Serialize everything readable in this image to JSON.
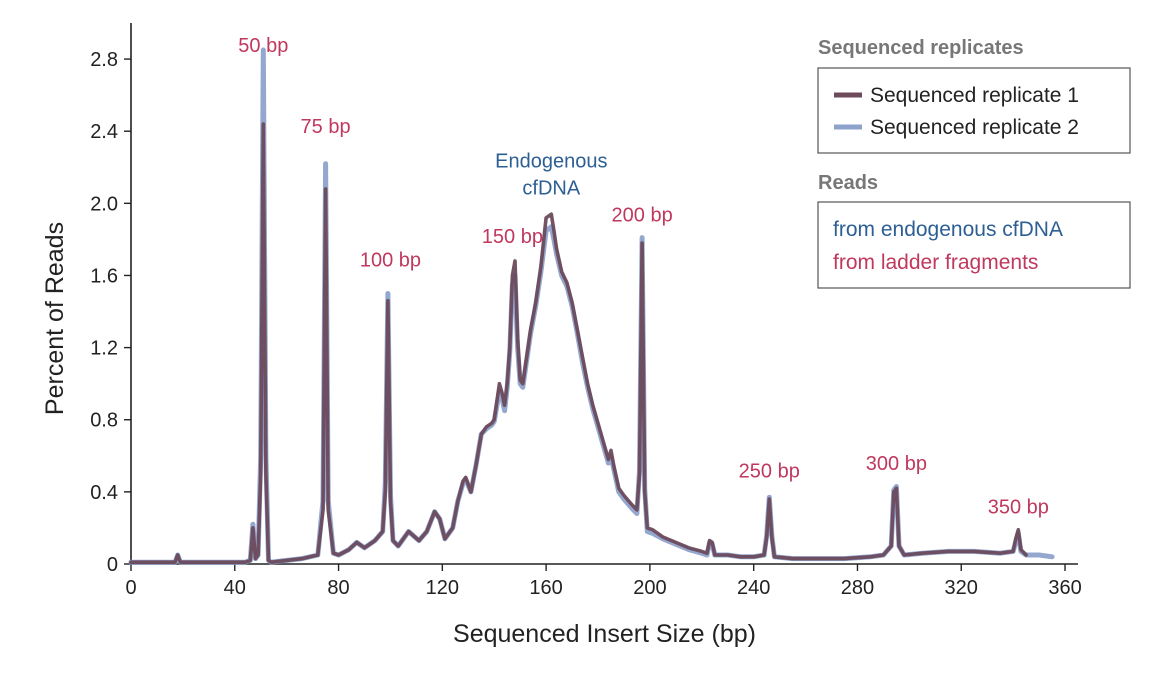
{
  "chart_data": {
    "type": "line",
    "xlabel": "Sequenced Insert Size (bp)",
    "ylabel": "Percent of Reads",
    "xlim": [
      0,
      365
    ],
    "ylim": [
      0,
      3.0
    ],
    "xticks": [
      0,
      40,
      80,
      120,
      160,
      200,
      240,
      280,
      320,
      360
    ],
    "yticks": [
      0,
      0.4,
      0.8,
      1.2,
      1.6,
      2.0,
      2.4,
      2.8
    ],
    "xtick_labels": [
      "0",
      "40",
      "80",
      "120",
      "160",
      "200",
      "240",
      "280",
      "320",
      "360"
    ],
    "ytick_labels": [
      "0",
      "0.4",
      "0.8",
      "1.2",
      "1.6",
      "2.0",
      "2.4",
      "2.8"
    ],
    "grid": false,
    "legend": {
      "placement": "top-right",
      "replicates_title": "Sequenced replicates",
      "reads_title": "Reads",
      "reads_entries": [
        {
          "label": "from endogenous cfDNA",
          "color": "#2d5f95"
        },
        {
          "label": "from ladder fragments",
          "color": "#c0385e"
        }
      ]
    },
    "series": [
      {
        "name": "Sequenced replicate 1",
        "color": "#6b4a5c",
        "points": [
          [
            0,
            0.01
          ],
          [
            10,
            0.01
          ],
          [
            17,
            0.01
          ],
          [
            18,
            0.05
          ],
          [
            19,
            0.01
          ],
          [
            30,
            0.01
          ],
          [
            44,
            0.01
          ],
          [
            46,
            0.02
          ],
          [
            47,
            0.2
          ],
          [
            48,
            0.03
          ],
          [
            49,
            0.05
          ],
          [
            50,
            0.5
          ],
          [
            51,
            2.44
          ],
          [
            52,
            0.5
          ],
          [
            53,
            0.02
          ],
          [
            54,
            0.01
          ],
          [
            60,
            0.02
          ],
          [
            66,
            0.03
          ],
          [
            72,
            0.05
          ],
          [
            74,
            0.3
          ],
          [
            75,
            2.08
          ],
          [
            76,
            0.3
          ],
          [
            78,
            0.06
          ],
          [
            80,
            0.05
          ],
          [
            84,
            0.08
          ],
          [
            87,
            0.12
          ],
          [
            90,
            0.09
          ],
          [
            94,
            0.13
          ],
          [
            97,
            0.18
          ],
          [
            98,
            0.4
          ],
          [
            99,
            1.46
          ],
          [
            100,
            0.35
          ],
          [
            101,
            0.13
          ],
          [
            103,
            0.1
          ],
          [
            107,
            0.18
          ],
          [
            111,
            0.13
          ],
          [
            114,
            0.18
          ],
          [
            117,
            0.29
          ],
          [
            119,
            0.25
          ],
          [
            121,
            0.14
          ],
          [
            124,
            0.2
          ],
          [
            126,
            0.35
          ],
          [
            128,
            0.46
          ],
          [
            129,
            0.48
          ],
          [
            131,
            0.4
          ],
          [
            133,
            0.55
          ],
          [
            135,
            0.72
          ],
          [
            137,
            0.76
          ],
          [
            139,
            0.78
          ],
          [
            140,
            0.8
          ],
          [
            142,
            1.0
          ],
          [
            143,
            0.95
          ],
          [
            144,
            0.88
          ],
          [
            145,
            1.0
          ],
          [
            146,
            1.2
          ],
          [
            147,
            1.6
          ],
          [
            148,
            1.68
          ],
          [
            149,
            1.25
          ],
          [
            150,
            1.02
          ],
          [
            151,
            1.0
          ],
          [
            152,
            1.1
          ],
          [
            154,
            1.3
          ],
          [
            156,
            1.45
          ],
          [
            158,
            1.65
          ],
          [
            160,
            1.92
          ],
          [
            162,
            1.94
          ],
          [
            163,
            1.85
          ],
          [
            164,
            1.75
          ],
          [
            166,
            1.62
          ],
          [
            168,
            1.56
          ],
          [
            170,
            1.45
          ],
          [
            172,
            1.3
          ],
          [
            174,
            1.15
          ],
          [
            176,
            1.0
          ],
          [
            178,
            0.88
          ],
          [
            180,
            0.78
          ],
          [
            182,
            0.68
          ],
          [
            184,
            0.58
          ],
          [
            185,
            0.63
          ],
          [
            186,
            0.55
          ],
          [
            188,
            0.42
          ],
          [
            190,
            0.38
          ],
          [
            193,
            0.33
          ],
          [
            195,
            0.3
          ],
          [
            196,
            0.5
          ],
          [
            197,
            1.78
          ],
          [
            198,
            0.4
          ],
          [
            199,
            0.2
          ],
          [
            201,
            0.19
          ],
          [
            205,
            0.15
          ],
          [
            210,
            0.12
          ],
          [
            215,
            0.09
          ],
          [
            220,
            0.07
          ],
          [
            222,
            0.06
          ],
          [
            223,
            0.13
          ],
          [
            224,
            0.12
          ],
          [
            225,
            0.05
          ],
          [
            230,
            0.05
          ],
          [
            235,
            0.04
          ],
          [
            240,
            0.04
          ],
          [
            244,
            0.05
          ],
          [
            245,
            0.15
          ],
          [
            246,
            0.36
          ],
          [
            247,
            0.15
          ],
          [
            248,
            0.04
          ],
          [
            255,
            0.03
          ],
          [
            265,
            0.03
          ],
          [
            275,
            0.03
          ],
          [
            285,
            0.04
          ],
          [
            290,
            0.05
          ],
          [
            293,
            0.1
          ],
          [
            294,
            0.4
          ],
          [
            295,
            0.42
          ],
          [
            296,
            0.1
          ],
          [
            298,
            0.05
          ],
          [
            305,
            0.06
          ],
          [
            315,
            0.07
          ],
          [
            325,
            0.07
          ],
          [
            335,
            0.06
          ],
          [
            340,
            0.07
          ],
          [
            341,
            0.14
          ],
          [
            342,
            0.19
          ],
          [
            343,
            0.08
          ],
          [
            345,
            0.05
          ]
        ]
      },
      {
        "name": "Sequenced replicate 2",
        "color": "#8ea2cc",
        "points": [
          [
            0,
            0.01
          ],
          [
            10,
            0.01
          ],
          [
            17,
            0.01
          ],
          [
            18,
            0.05
          ],
          [
            19,
            0.01
          ],
          [
            30,
            0.01
          ],
          [
            44,
            0.01
          ],
          [
            46,
            0.02
          ],
          [
            47,
            0.22
          ],
          [
            48,
            0.03
          ],
          [
            49,
            0.05
          ],
          [
            50,
            0.6
          ],
          [
            51,
            2.85
          ],
          [
            52,
            0.6
          ],
          [
            53,
            0.02
          ],
          [
            54,
            0.01
          ],
          [
            60,
            0.02
          ],
          [
            66,
            0.03
          ],
          [
            72,
            0.05
          ],
          [
            74,
            0.35
          ],
          [
            75,
            2.22
          ],
          [
            76,
            0.35
          ],
          [
            78,
            0.06
          ],
          [
            80,
            0.05
          ],
          [
            84,
            0.08
          ],
          [
            87,
            0.12
          ],
          [
            90,
            0.09
          ],
          [
            94,
            0.13
          ],
          [
            97,
            0.18
          ],
          [
            98,
            0.45
          ],
          [
            99,
            1.5
          ],
          [
            100,
            0.38
          ],
          [
            101,
            0.13
          ],
          [
            103,
            0.1
          ],
          [
            107,
            0.18
          ],
          [
            111,
            0.13
          ],
          [
            114,
            0.18
          ],
          [
            117,
            0.29
          ],
          [
            119,
            0.25
          ],
          [
            121,
            0.14
          ],
          [
            124,
            0.2
          ],
          [
            126,
            0.35
          ],
          [
            128,
            0.45
          ],
          [
            129,
            0.47
          ],
          [
            131,
            0.4
          ],
          [
            133,
            0.55
          ],
          [
            135,
            0.72
          ],
          [
            137,
            0.75
          ],
          [
            139,
            0.77
          ],
          [
            140,
            0.79
          ],
          [
            142,
            0.96
          ],
          [
            143,
            0.92
          ],
          [
            144,
            0.85
          ],
          [
            145,
            0.98
          ],
          [
            146,
            1.18
          ],
          [
            147,
            1.55
          ],
          [
            148,
            1.6
          ],
          [
            149,
            1.2
          ],
          [
            150,
            1.0
          ],
          [
            151,
            0.98
          ],
          [
            152,
            1.08
          ],
          [
            154,
            1.28
          ],
          [
            156,
            1.43
          ],
          [
            158,
            1.62
          ],
          [
            160,
            1.85
          ],
          [
            162,
            1.87
          ],
          [
            163,
            1.8
          ],
          [
            164,
            1.72
          ],
          [
            166,
            1.6
          ],
          [
            168,
            1.54
          ],
          [
            170,
            1.43
          ],
          [
            172,
            1.28
          ],
          [
            174,
            1.12
          ],
          [
            176,
            0.98
          ],
          [
            178,
            0.86
          ],
          [
            180,
            0.76
          ],
          [
            182,
            0.66
          ],
          [
            184,
            0.56
          ],
          [
            185,
            0.6
          ],
          [
            186,
            0.53
          ],
          [
            188,
            0.4
          ],
          [
            190,
            0.36
          ],
          [
            193,
            0.31
          ],
          [
            195,
            0.28
          ],
          [
            196,
            0.52
          ],
          [
            197,
            1.81
          ],
          [
            198,
            0.42
          ],
          [
            199,
            0.18
          ],
          [
            201,
            0.17
          ],
          [
            205,
            0.14
          ],
          [
            210,
            0.11
          ],
          [
            215,
            0.08
          ],
          [
            220,
            0.06
          ],
          [
            222,
            0.05
          ],
          [
            223,
            0.12
          ],
          [
            224,
            0.11
          ],
          [
            225,
            0.05
          ],
          [
            230,
            0.05
          ],
          [
            235,
            0.04
          ],
          [
            240,
            0.04
          ],
          [
            244,
            0.05
          ],
          [
            245,
            0.16
          ],
          [
            246,
            0.37
          ],
          [
            247,
            0.16
          ],
          [
            248,
            0.04
          ],
          [
            255,
            0.03
          ],
          [
            265,
            0.03
          ],
          [
            275,
            0.03
          ],
          [
            285,
            0.04
          ],
          [
            290,
            0.05
          ],
          [
            293,
            0.1
          ],
          [
            294,
            0.41
          ],
          [
            295,
            0.43
          ],
          [
            296,
            0.1
          ],
          [
            298,
            0.05
          ],
          [
            305,
            0.06
          ],
          [
            315,
            0.07
          ],
          [
            325,
            0.07
          ],
          [
            335,
            0.06
          ],
          [
            340,
            0.07
          ],
          [
            341,
            0.12
          ],
          [
            342,
            0.17
          ],
          [
            343,
            0.07
          ],
          [
            345,
            0.05
          ],
          [
            350,
            0.05
          ],
          [
            355,
            0.04
          ]
        ]
      }
    ],
    "annotations": [
      {
        "text": "50 bp",
        "x": 51,
        "y": 2.84,
        "color": "#c0385e"
      },
      {
        "text": "75 bp",
        "x": 75,
        "y": 2.39,
        "color": "#c0385e"
      },
      {
        "text": "100 bp",
        "x": 100,
        "y": 1.65,
        "color": "#c0385e"
      },
      {
        "text": "150 bp",
        "x": 147,
        "y": 1.78,
        "color": "#c0385e"
      },
      {
        "text": "Endogenous",
        "x": 162,
        "y": 2.2,
        "color": "#2d5f95"
      },
      {
        "text": "cfDNA",
        "x": 162,
        "y": 2.05,
        "color": "#2d5f95"
      },
      {
        "text": "200 bp",
        "x": 197,
        "y": 1.9,
        "color": "#c0385e"
      },
      {
        "text": "250 bp",
        "x": 246,
        "y": 0.48,
        "color": "#c0385e"
      },
      {
        "text": "300 bp",
        "x": 295,
        "y": 0.52,
        "color": "#c0385e"
      },
      {
        "text": "350 bp",
        "x": 342,
        "y": 0.28,
        "color": "#c0385e"
      }
    ]
  }
}
